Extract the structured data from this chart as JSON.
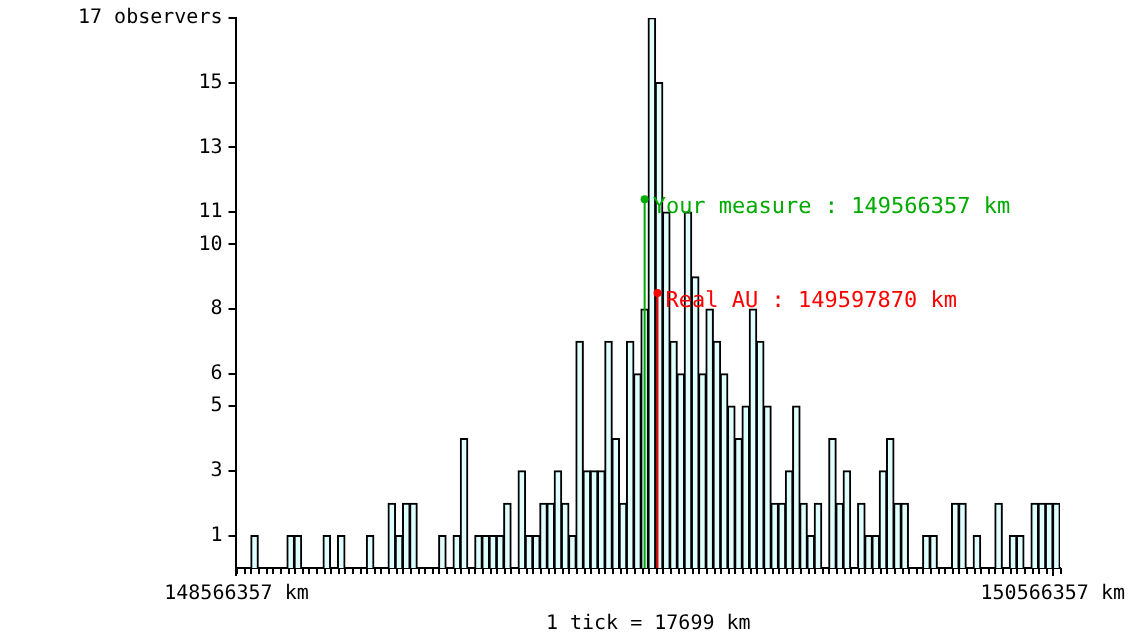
{
  "chart_data": {
    "type": "histogram",
    "xlabel": "1 tick = 17699 km",
    "bins": [
      148566357,
      148584056,
      148601755,
      148619454,
      148637153,
      148654852,
      148672551,
      148690250,
      148707949,
      148725648,
      148743347,
      148761046,
      148778745,
      148796444,
      148814143,
      148831842,
      148849541,
      148867240,
      148884939,
      148902638,
      148920337,
      148938036,
      148955735,
      148973434,
      148991133,
      149008832,
      149026531,
      149044230,
      149061929,
      149079628,
      149097327,
      149115026,
      149132725,
      149150424,
      149168123,
      149185822,
      149203521,
      149221220,
      149238919,
      149256618,
      149274317,
      149292016,
      149309715,
      149327414,
      149345113,
      149362812,
      149380511,
      149398210,
      149415909,
      149433608,
      149451307,
      149469006,
      149486705,
      149504404,
      149522103,
      149539802,
      149557501,
      149575200,
      149592899,
      149610598,
      149628297,
      149645996,
      149663695,
      149681394,
      149699093,
      149716792,
      149734491,
      149752190,
      149769889,
      149787588,
      149805287,
      149822986,
      149840685,
      149858384,
      149876083,
      149893782,
      149911481,
      149929180,
      149946879,
      149964578,
      149982277,
      149999976,
      150017675,
      150035374,
      150053073,
      150070772,
      150088471,
      150106170,
      150123869,
      150141568,
      150159267,
      150176966,
      150194665,
      150212364,
      150230063,
      150247762,
      150265461,
      150283160,
      150300859,
      150318558,
      150336257,
      150353956,
      150371655,
      150389354,
      150407053,
      150424752,
      150442451,
      150460150,
      150477849,
      150495548,
      150513247,
      150530946,
      150548645,
      150566344,
      150584043
    ],
    "values": [
      0,
      0,
      1,
      0,
      0,
      0,
      0,
      1,
      1,
      0,
      0,
      0,
      1,
      0,
      1,
      0,
      0,
      0,
      1,
      0,
      0,
      2,
      1,
      2,
      2,
      0,
      0,
      0,
      1,
      0,
      1,
      4,
      0,
      1,
      1,
      1,
      1,
      2,
      0,
      3,
      1,
      1,
      2,
      2,
      3,
      2,
      1,
      7,
      3,
      3,
      3,
      7,
      4,
      2,
      7,
      6,
      8,
      17,
      15,
      11,
      7,
      6,
      11,
      9,
      6,
      8,
      7,
      6,
      5,
      4,
      5,
      8,
      7,
      5,
      2,
      2,
      3,
      5,
      2,
      1,
      2,
      0,
      4,
      2,
      3,
      0,
      2,
      1,
      1,
      3,
      4,
      2,
      2,
      0,
      0,
      1,
      1,
      0,
      0,
      2,
      2,
      0,
      1,
      0,
      0,
      2,
      0,
      1,
      1,
      0,
      2,
      2,
      2,
      2
    ],
    "color": "#e0ffff",
    "xlim": [
      148566357,
      150584043
    ],
    "xticks": [
      {
        "value": 148566357,
        "label": "148566357 km"
      },
      {
        "value": 150566357,
        "label": "150566357 km"
      }
    ],
    "ylim": [
      0,
      17
    ],
    "yticks": [
      1,
      3,
      5,
      6,
      8,
      10,
      11,
      13,
      15,
      {
        "value": 17,
        "label": "17 observers"
      }
    ],
    "ref_lines": [
      {
        "axis": "x",
        "value": 149566357,
        "color": "#00aa00"
      },
      {
        "axis": "x",
        "value": 149597870,
        "color": "#ff0000"
      }
    ],
    "annotations": [
      {
        "text": "Your measure : 149566357 km",
        "x": 149566357,
        "y": 11.4
      },
      {
        "text": "Real AU : 149597870 km",
        "x": 149597870,
        "y": 8.5
      }
    ],
    "grid": false,
    "legend": false
  }
}
